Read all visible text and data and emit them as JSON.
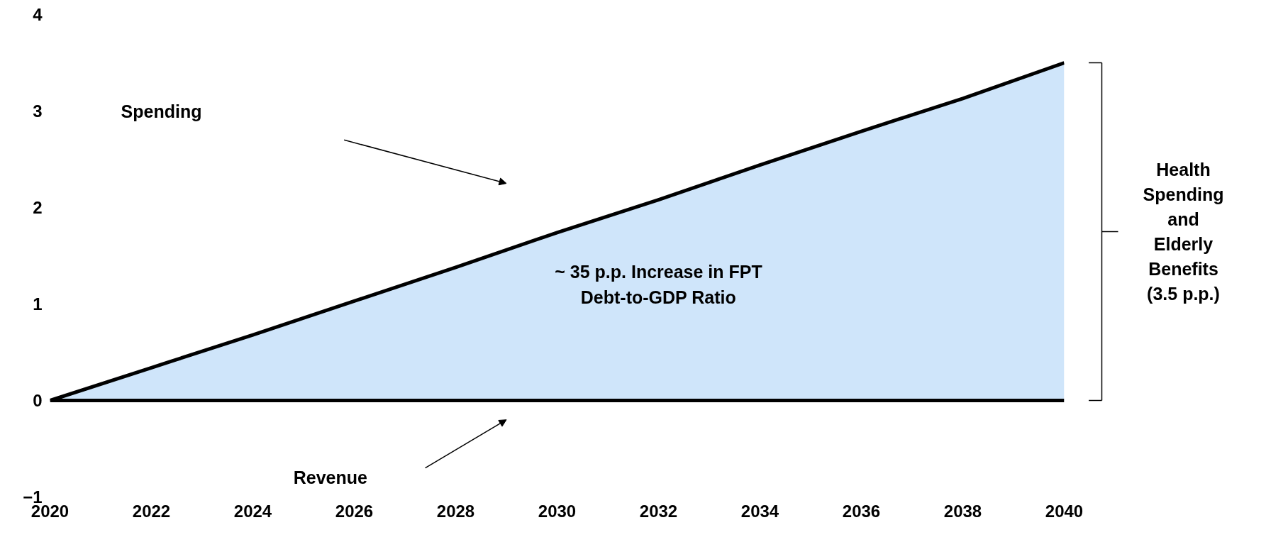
{
  "chart_data": {
    "type": "area",
    "x": [
      2020,
      2022,
      2024,
      2026,
      2028,
      2030,
      2032,
      2034,
      2036,
      2038,
      2040
    ],
    "series": [
      {
        "color": "#cfe5fa",
        "values": [
          0,
          0.34,
          0.68,
          1.03,
          1.38,
          1.74,
          2.08,
          2.44,
          2.79,
          3.13,
          3.5
        ]
      },
      {
        "type": "line",
        "color": "#000000",
        "values": [
          0,
          0,
          0,
          0,
          0,
          0,
          0,
          0,
          0,
          0,
          0
        ]
      }
    ],
    "xlim": [
      2020,
      2040
    ],
    "xticks": [
      2020,
      2022,
      2024,
      2026,
      2028,
      2030,
      2032,
      2034,
      2036,
      2038,
      2040
    ],
    "ylim": [
      -1,
      4
    ],
    "yticks": [
      -1,
      0,
      1,
      2,
      3,
      4
    ],
    "grid": false,
    "annotations": [
      "Spending",
      "Revenue",
      "~ 35 p.p. Increase in FPT\nDebt-to-GDP Ratio",
      "Health\nSpending\nand\nElderly\nBenefits\n(3.5 p.p.)"
    ]
  }
}
